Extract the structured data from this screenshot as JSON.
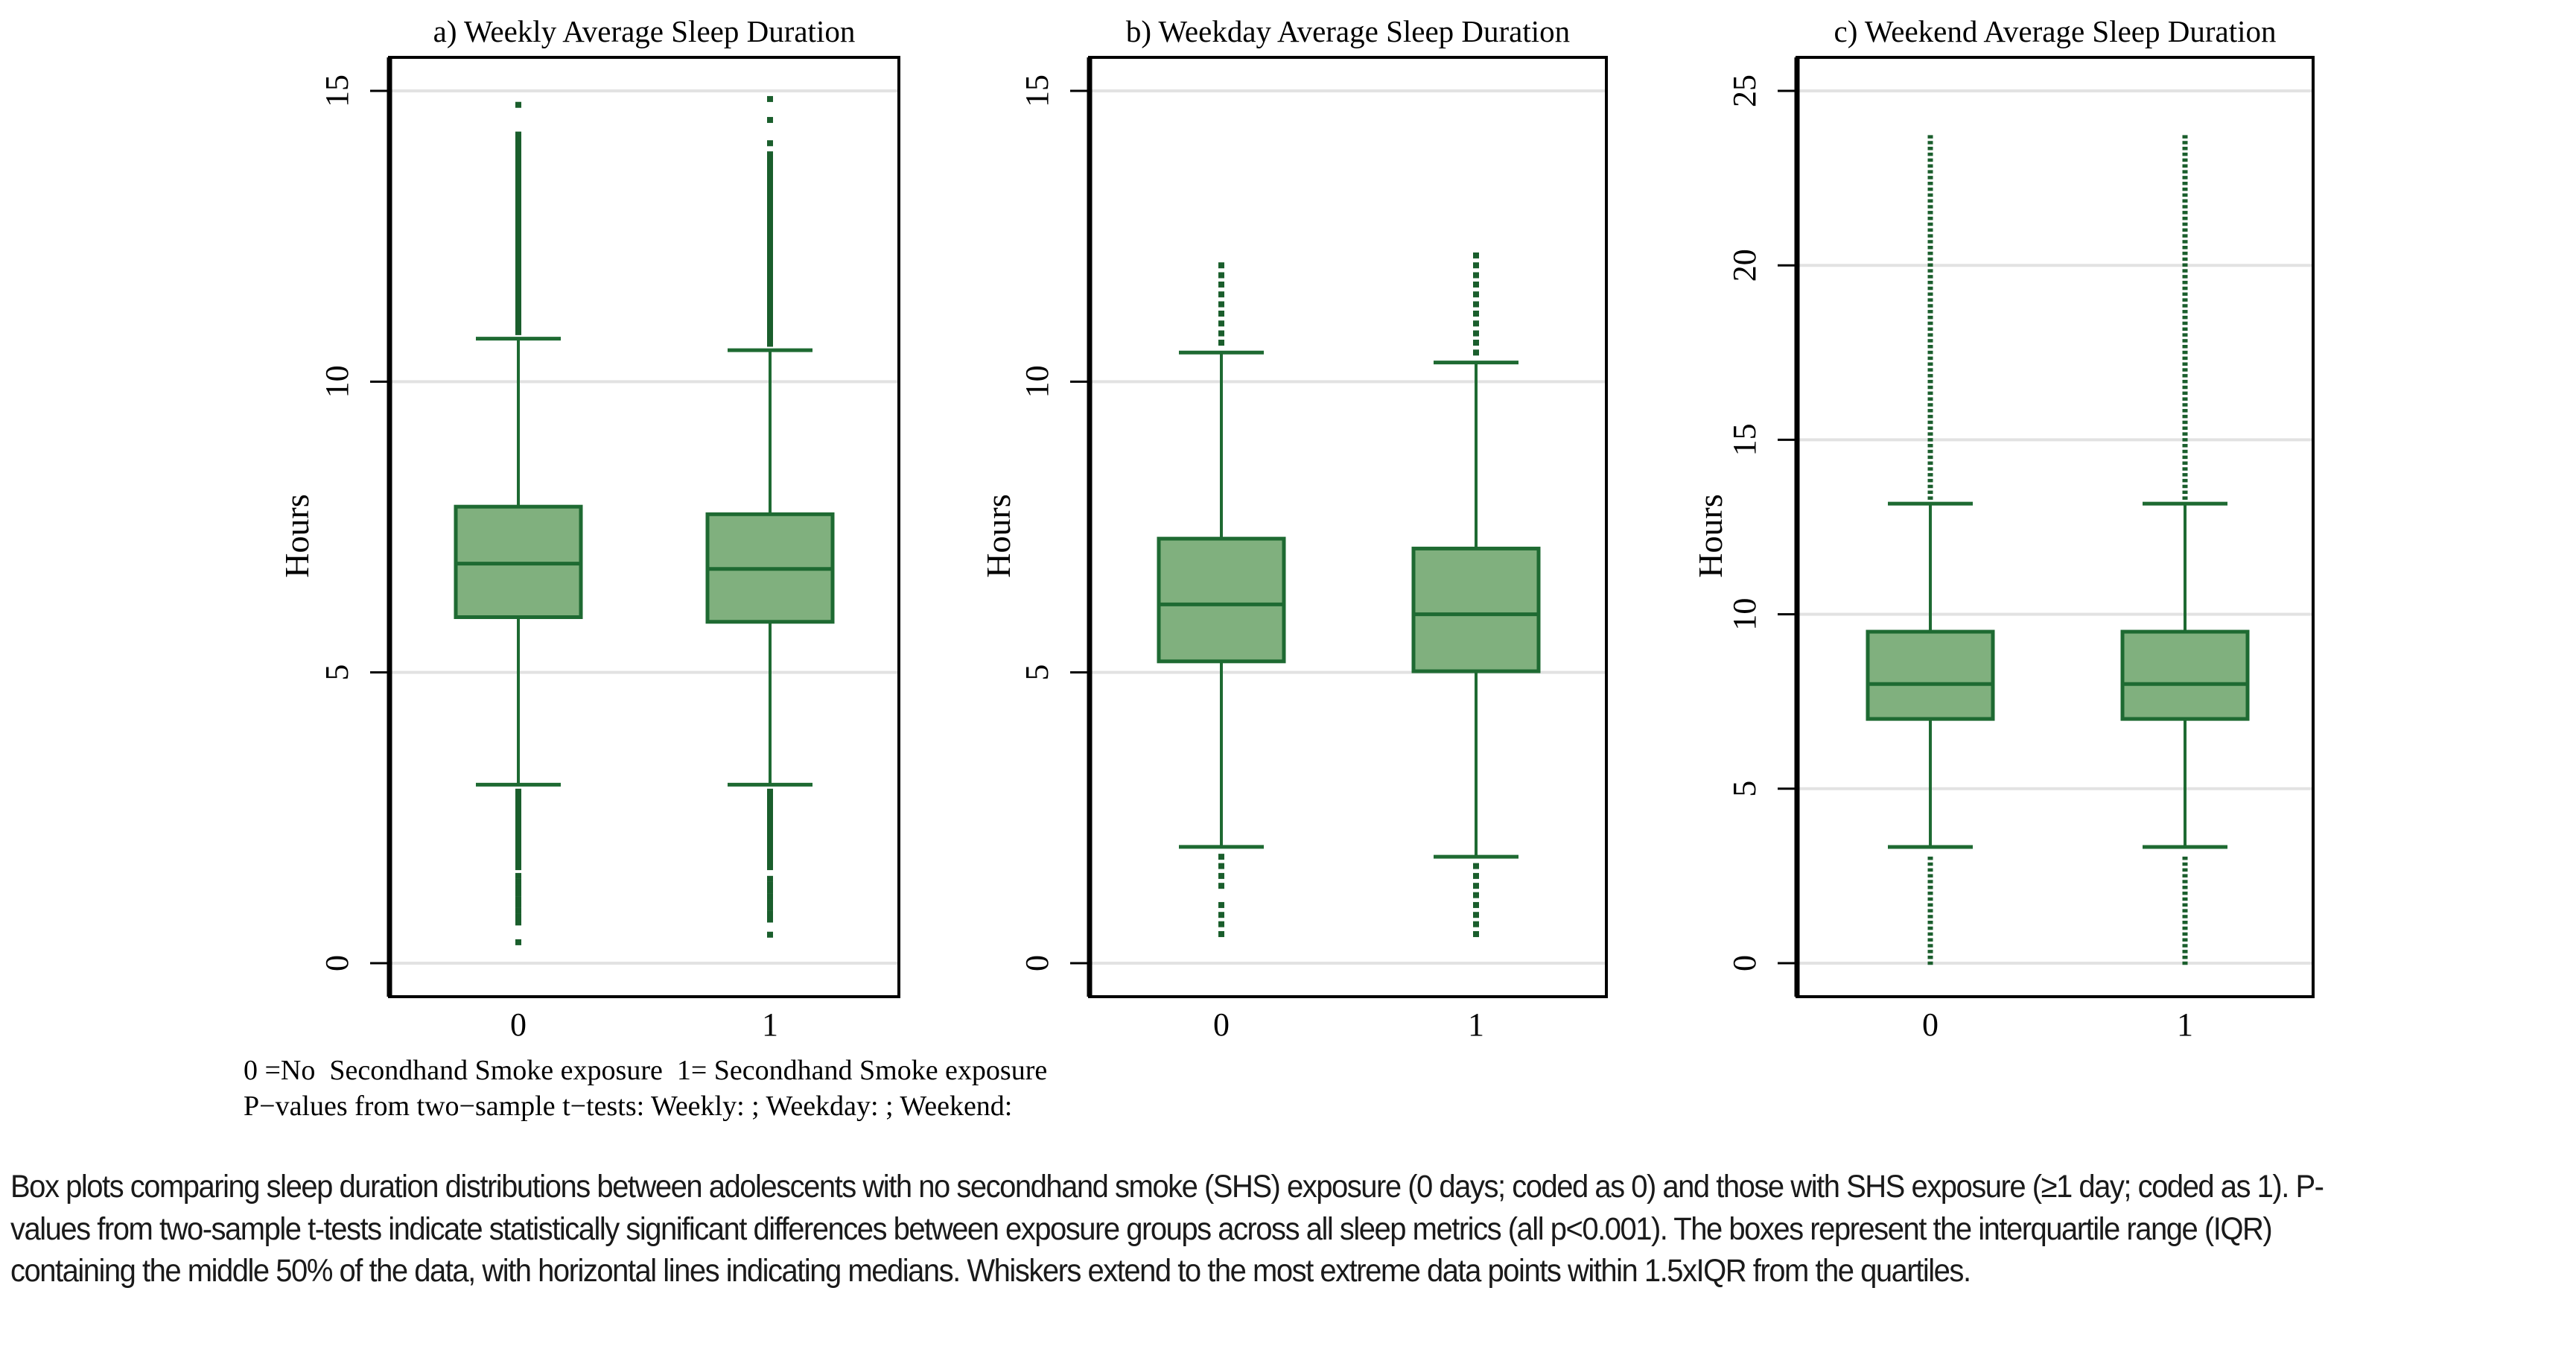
{
  "chart_data": [
    {
      "type": "box",
      "title": "a) Weekly Average Sleep Duration",
      "ylabel": "Hours",
      "xlabel": "",
      "ylim": [
        -1.1,
        16.5
      ],
      "yticks": [
        0,
        5,
        10,
        15
      ],
      "grid": true,
      "categories": [
        "0",
        "1"
      ],
      "boxes": [
        {
          "group": "0",
          "q1": 5.95,
          "median": 6.87,
          "q3": 7.85,
          "whisker_low": 3.07,
          "whisker_high": 10.74,
          "outliers_low": {
            "dense_from": 3.0,
            "dense_to": 1.6,
            "points": [
              1.5,
              1.4,
              1.3,
              1.2,
              1.1,
              1.0,
              0.9,
              0.8,
              0.7,
              0.36
            ]
          },
          "outliers_high": {
            "dense_from": 10.8,
            "dense_to": 14.3,
            "points": [
              14.2,
              14.1,
              14.0,
              13.9,
              14.76
            ]
          }
        },
        {
          "group": "1",
          "q1": 5.87,
          "median": 6.78,
          "q3": 7.72,
          "whisker_low": 3.07,
          "whisker_high": 10.54,
          "outliers_low": {
            "dense_from": 3.0,
            "dense_to": 1.6,
            "points": [
              1.45,
              1.35,
              1.25,
              1.15,
              1.05,
              0.95,
              0.85,
              0.75,
              0.49
            ]
          },
          "outliers_high": {
            "dense_from": 10.6,
            "dense_to": 13.96,
            "points": [
              14.1,
              14.5,
              14.86
            ]
          }
        }
      ]
    },
    {
      "type": "box",
      "title": "b) Weekday Average Sleep Duration",
      "ylabel": "Hours",
      "xlabel": "",
      "ylim": [
        -1.1,
        16.5
      ],
      "yticks": [
        0,
        5,
        10,
        15
      ],
      "grid": true,
      "categories": [
        "0",
        "1"
      ],
      "boxes": [
        {
          "group": "0",
          "q1": 5.19,
          "median": 6.17,
          "q3": 7.3,
          "whisker_low": 2.0,
          "whisker_high": 10.5,
          "outliers_low": {
            "points": [
              1.83,
              1.67,
              1.5,
              1.33,
              1.0,
              0.83,
              0.67,
              0.5
            ]
          },
          "outliers_high": {
            "points": [
              10.67,
              10.83,
              11.0,
              11.17,
              11.33,
              11.5,
              11.67,
              11.83,
              12.0
            ]
          }
        },
        {
          "group": "1",
          "q1": 5.02,
          "median": 6.0,
          "q3": 7.13,
          "whisker_low": 1.83,
          "whisker_high": 10.33,
          "outliers_low": {
            "points": [
              1.67,
              1.5,
              1.33,
              1.17,
              1.0,
              0.83,
              0.67,
              0.5
            ]
          },
          "outliers_high": {
            "points": [
              10.5,
              10.67,
              10.83,
              11.0,
              11.17,
              11.33,
              11.5,
              11.67,
              11.83,
              12.0,
              12.17
            ]
          }
        }
      ]
    },
    {
      "type": "box",
      "title": "c) Weekend Average Sleep Duration",
      "ylabel": "Hours",
      "xlabel": "",
      "ylim": [
        -1.9,
        27.5
      ],
      "yticks": [
        0,
        5,
        10,
        15,
        20,
        25
      ],
      "grid": true,
      "categories": [
        "0",
        "1"
      ],
      "boxes": [
        {
          "group": "0",
          "q1": 7.0,
          "median": 8.0,
          "q3": 9.5,
          "whisker_low": 3.33,
          "whisker_high": 13.17,
          "outliers_low": {
            "step": 0.167,
            "from": 0.0,
            "to": 3.17
          },
          "outliers_high": {
            "step": 0.167,
            "from": 13.33,
            "to": 23.83
          }
        },
        {
          "group": "1",
          "q1": 7.0,
          "median": 8.0,
          "q3": 9.5,
          "whisker_low": 3.33,
          "whisker_high": 13.17,
          "outliers_low": {
            "step": 0.167,
            "from": 0.0,
            "to": 3.17
          },
          "outliers_high": {
            "step": 0.167,
            "from": 13.33,
            "to": 23.83
          }
        }
      ]
    }
  ],
  "notes": {
    "legend_line": "0 =No  Secondhand Smoke exposure  1= Secondhand Smoke exposure",
    "pvalue_line": "P−values from two−sample t−tests: Weekly: ; Weekday: ; Weekend:"
  },
  "caption": "Box plots comparing sleep duration distributions between adolescents with no secondhand smoke (SHS) exposure (0 days; coded as 0) and those with SHS exposure (≥1 day; coded as 1). P-values from two-sample t-tests indicate statistically significant differences between exposure groups across all sleep metrics (all p<0.001). The boxes represent the interquartile range (IQR) containing the middle 50% of the data, with horizontal lines indicating medians. Whiskers extend to the most extreme data points within 1.5xIQR from the quartiles.",
  "colors": {
    "box_fill": "#80b07e",
    "box_stroke": "#1e6a32",
    "whisker": "#1e6a32",
    "outlier": "#1a5e2c",
    "gridline": "#e2e2e2",
    "axis": "#000000"
  }
}
